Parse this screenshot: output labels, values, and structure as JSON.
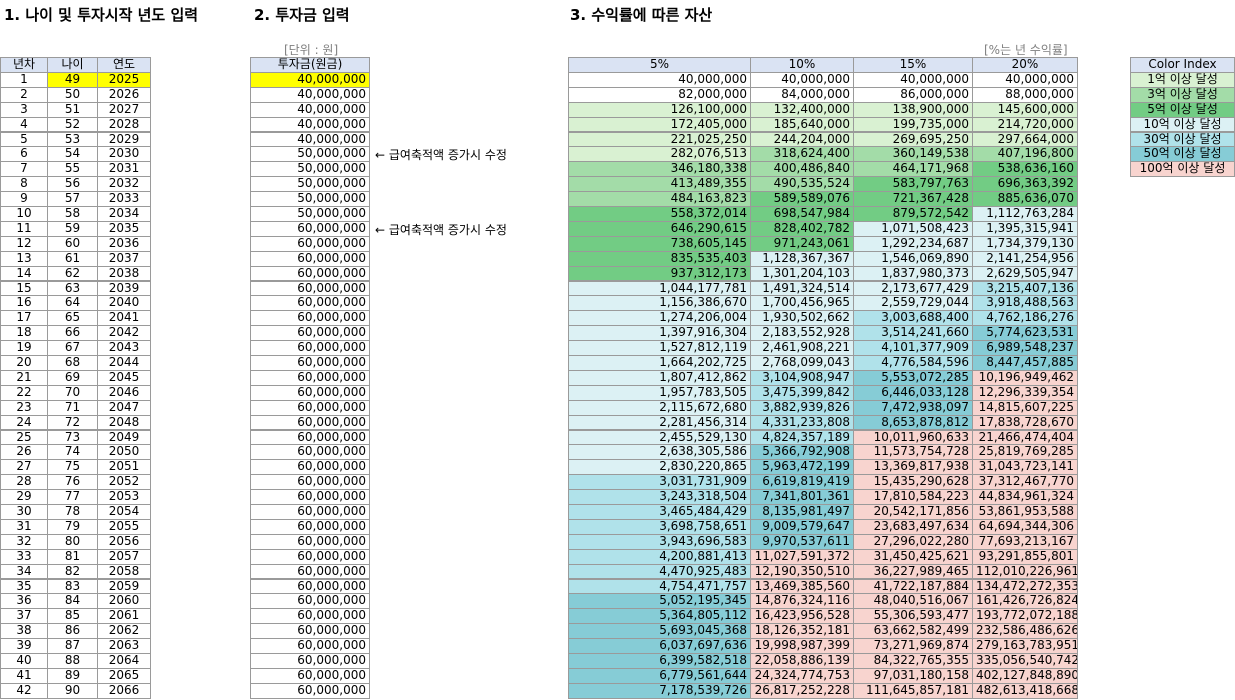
{
  "titles": [
    "1. 나이 및 투자시작 년도 입력",
    "2. 투자금 입력",
    "3. 수익률에 따른 자산"
  ],
  "unit_note": "[단위 : 원]",
  "rate_note": "[%는 년 수익률]",
  "headers": [
    "년차",
    "나이",
    "연도",
    "투자금(원금)",
    "5%",
    "10%",
    "15%",
    "20%"
  ],
  "notes": [
    "← 급여축적액 증가시 수정",
    "← 급여축적액 증가시 수정"
  ],
  "color_index": {
    "title": "Color Index",
    "items": [
      {
        "label": "1억 이상 달성",
        "color": "#d9f1d2"
      },
      {
        "label": "3억 이상 달성",
        "color": "#a3dca8"
      },
      {
        "label": "5억 이상 달성",
        "color": "#72cc84"
      },
      {
        "label": "10억 이상 달성",
        "color": "#dcf1f4"
      },
      {
        "label": "30억 이상 달성",
        "color": "#b0e2ea"
      },
      {
        "label": "50억 이상 달성",
        "color": "#86ccd6"
      },
      {
        "label": "100억 이상 달성",
        "color": "#f8d4cf"
      }
    ]
  },
  "input_color": "#ffff00",
  "rows": [
    [
      "1",
      "49",
      "2025",
      "40,000,000",
      "40,000,000",
      "40,000,000",
      "40,000,000",
      "40,000,000"
    ],
    [
      "2",
      "50",
      "2026",
      "40,000,000",
      "82,000,000",
      "84,000,000",
      "86,000,000",
      "88,000,000"
    ],
    [
      "3",
      "51",
      "2027",
      "40,000,000",
      "126,100,000",
      "132,400,000",
      "138,900,000",
      "145,600,000"
    ],
    [
      "4",
      "52",
      "2028",
      "40,000,000",
      "172,405,000",
      "185,640,000",
      "199,735,000",
      "214,720,000"
    ],
    [
      "5",
      "53",
      "2029",
      "40,000,000",
      "221,025,250",
      "244,204,000",
      "269,695,250",
      "297,664,000"
    ],
    [
      "6",
      "54",
      "2030",
      "50,000,000",
      "282,076,513",
      "318,624,400",
      "360,149,538",
      "407,196,800"
    ],
    [
      "7",
      "55",
      "2031",
      "50,000,000",
      "346,180,338",
      "400,486,840",
      "464,171,968",
      "538,636,160"
    ],
    [
      "8",
      "56",
      "2032",
      "50,000,000",
      "413,489,355",
      "490,535,524",
      "583,797,763",
      "696,363,392"
    ],
    [
      "9",
      "57",
      "2033",
      "50,000,000",
      "484,163,823",
      "589,589,076",
      "721,367,428",
      "885,636,070"
    ],
    [
      "10",
      "58",
      "2034",
      "50,000,000",
      "558,372,014",
      "698,547,984",
      "879,572,542",
      "1,112,763,284"
    ],
    [
      "11",
      "59",
      "2035",
      "60,000,000",
      "646,290,615",
      "828,402,782",
      "1,071,508,423",
      "1,395,315,941"
    ],
    [
      "12",
      "60",
      "2036",
      "60,000,000",
      "738,605,145",
      "971,243,061",
      "1,292,234,687",
      "1,734,379,130"
    ],
    [
      "13",
      "61",
      "2037",
      "60,000,000",
      "835,535,403",
      "1,128,367,367",
      "1,546,069,890",
      "2,141,254,956"
    ],
    [
      "14",
      "62",
      "2038",
      "60,000,000",
      "937,312,173",
      "1,301,204,103",
      "1,837,980,373",
      "2,629,505,947"
    ],
    [
      "15",
      "63",
      "2039",
      "60,000,000",
      "1,044,177,781",
      "1,491,324,514",
      "2,173,677,429",
      "3,215,407,136"
    ],
    [
      "16",
      "64",
      "2040",
      "60,000,000",
      "1,156,386,670",
      "1,700,456,965",
      "2,559,729,044",
      "3,918,488,563"
    ],
    [
      "17",
      "65",
      "2041",
      "60,000,000",
      "1,274,206,004",
      "1,930,502,662",
      "3,003,688,400",
      "4,762,186,276"
    ],
    [
      "18",
      "66",
      "2042",
      "60,000,000",
      "1,397,916,304",
      "2,183,552,928",
      "3,514,241,660",
      "5,774,623,531"
    ],
    [
      "19",
      "67",
      "2043",
      "60,000,000",
      "1,527,812,119",
      "2,461,908,221",
      "4,101,377,909",
      "6,989,548,237"
    ],
    [
      "20",
      "68",
      "2044",
      "60,000,000",
      "1,664,202,725",
      "2,768,099,043",
      "4,776,584,596",
      "8,447,457,885"
    ],
    [
      "21",
      "69",
      "2045",
      "60,000,000",
      "1,807,412,862",
      "3,104,908,947",
      "5,553,072,285",
      "10,196,949,462"
    ],
    [
      "22",
      "70",
      "2046",
      "60,000,000",
      "1,957,783,505",
      "3,475,399,842",
      "6,446,033,128",
      "12,296,339,354"
    ],
    [
      "23",
      "71",
      "2047",
      "60,000,000",
      "2,115,672,680",
      "3,882,939,826",
      "7,472,938,097",
      "14,815,607,225"
    ],
    [
      "24",
      "72",
      "2048",
      "60,000,000",
      "2,281,456,314",
      "4,331,233,808",
      "8,653,878,812",
      "17,838,728,670"
    ],
    [
      "25",
      "73",
      "2049",
      "60,000,000",
      "2,455,529,130",
      "4,824,357,189",
      "10,011,960,633",
      "21,466,474,404"
    ],
    [
      "26",
      "74",
      "2050",
      "60,000,000",
      "2,638,305,586",
      "5,366,792,908",
      "11,573,754,728",
      "25,819,769,285"
    ],
    [
      "27",
      "75",
      "2051",
      "60,000,000",
      "2,830,220,865",
      "5,963,472,199",
      "13,369,817,938",
      "31,043,723,141"
    ],
    [
      "28",
      "76",
      "2052",
      "60,000,000",
      "3,031,731,909",
      "6,619,819,419",
      "15,435,290,628",
      "37,312,467,770"
    ],
    [
      "29",
      "77",
      "2053",
      "60,000,000",
      "3,243,318,504",
      "7,341,801,361",
      "17,810,584,223",
      "44,834,961,324"
    ],
    [
      "30",
      "78",
      "2054",
      "60,000,000",
      "3,465,484,429",
      "8,135,981,497",
      "20,542,171,856",
      "53,861,953,588"
    ],
    [
      "31",
      "79",
      "2055",
      "60,000,000",
      "3,698,758,651",
      "9,009,579,647",
      "23,683,497,634",
      "64,694,344,306"
    ],
    [
      "32",
      "80",
      "2056",
      "60,000,000",
      "3,943,696,583",
      "9,970,537,611",
      "27,296,022,280",
      "77,693,213,167"
    ],
    [
      "33",
      "81",
      "2057",
      "60,000,000",
      "4,200,881,413",
      "11,027,591,372",
      "31,450,425,621",
      "93,291,855,801"
    ],
    [
      "34",
      "82",
      "2058",
      "60,000,000",
      "4,470,925,483",
      "12,190,350,510",
      "36,227,989,465",
      "112,010,226,961"
    ],
    [
      "35",
      "83",
      "2059",
      "60,000,000",
      "4,754,471,757",
      "13,469,385,560",
      "41,722,187,884",
      "134,472,272,353"
    ],
    [
      "36",
      "84",
      "2060",
      "60,000,000",
      "5,052,195,345",
      "14,876,324,116",
      "48,040,516,067",
      "161,426,726,824"
    ],
    [
      "37",
      "85",
      "2061",
      "60,000,000",
      "5,364,805,112",
      "16,423,956,528",
      "55,306,593,477",
      "193,772,072,188"
    ],
    [
      "38",
      "86",
      "2062",
      "60,000,000",
      "5,693,045,368",
      "18,126,352,181",
      "63,662,582,499",
      "232,586,486,626"
    ],
    [
      "39",
      "87",
      "2063",
      "60,000,000",
      "6,037,697,636",
      "19,998,987,399",
      "73,271,969,874",
      "279,163,783,951"
    ],
    [
      "40",
      "88",
      "2064",
      "60,000,000",
      "6,399,582,518",
      "22,058,886,139",
      "84,322,765,355",
      "335,056,540,742"
    ],
    [
      "41",
      "89",
      "2065",
      "60,000,000",
      "6,779,561,644",
      "24,324,774,753",
      "97,031,180,158",
      "402,127,848,890"
    ],
    [
      "42",
      "90",
      "2066",
      "60,000,000",
      "7,178,539,726",
      "26,817,252,228",
      "111,645,857,181",
      "482,613,418,668"
    ]
  ]
}
